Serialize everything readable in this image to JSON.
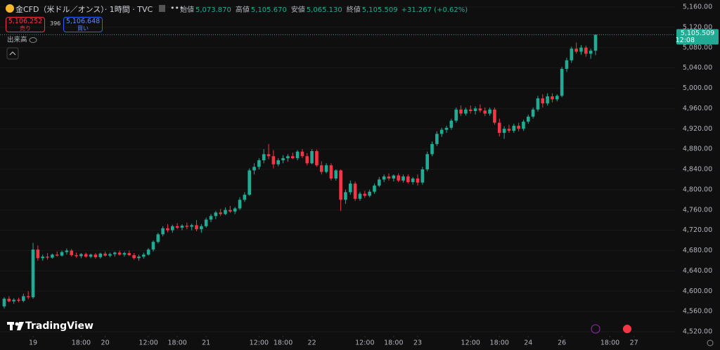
{
  "header": {
    "title": "金CFD（米ドル／オンス）· 1時間 · TVC",
    "legend": [
      {
        "label": "始値",
        "value": "5,073.870"
      },
      {
        "label": "高値",
        "value": "5,105.670"
      },
      {
        "label": "安値",
        "value": "5,065.130"
      },
      {
        "label": "終値",
        "value": "5,105.509"
      }
    ],
    "change": "+31.267 (+0.62%)",
    "sell": {
      "price": "5,106.252",
      "label": "売り"
    },
    "spread": "396",
    "buy": {
      "price": "5,106.648",
      "label": "買い"
    },
    "volume": "出来高",
    "watermark": "TradingView"
  },
  "chart_data": {
    "type": "candlestick",
    "up_color": "#22ab94",
    "down_color": "#f23645",
    "ylim": [
      4520,
      5160
    ],
    "yticks": [
      {
        "value": 5160,
        "label": "5,160.00"
      },
      {
        "value": 5120,
        "label": "5,120.00"
      },
      {
        "value": 5080,
        "label": "5,080.00"
      },
      {
        "value": 5040,
        "label": "5,040.00"
      },
      {
        "value": 5000,
        "label": "5,000.00"
      },
      {
        "value": 4960,
        "label": "4,960.00"
      },
      {
        "value": 4920,
        "label": "4,920.00"
      },
      {
        "value": 4880,
        "label": "4,880.00"
      },
      {
        "value": 4840,
        "label": "4,840.00"
      },
      {
        "value": 4800,
        "label": "4,800.00"
      },
      {
        "value": 4760,
        "label": "4,760.00"
      },
      {
        "value": 4720,
        "label": "4,720.00"
      },
      {
        "value": 4680,
        "label": "4,680.00"
      },
      {
        "value": 4640,
        "label": "4,640.00"
      },
      {
        "value": 4600,
        "label": "4,600.00"
      },
      {
        "value": 4560,
        "label": "4,560.00"
      },
      {
        "value": 4520,
        "label": "4,520.00"
      }
    ],
    "last_price": {
      "value": 5105.509,
      "label": "5,105.509"
    },
    "countdown": "12:08",
    "categories": [
      null,
      null,
      null,
      null,
      null,
      null,
      "19",
      null,
      null,
      null,
      null,
      null,
      null,
      null,
      null,
      null,
      "18:00",
      null,
      null,
      null,
      null,
      "20",
      null,
      null,
      null,
      null,
      null,
      null,
      null,
      null,
      "12:00",
      null,
      null,
      null,
      null,
      null,
      "18:00",
      null,
      null,
      null,
      null,
      null,
      "21",
      null,
      null,
      null,
      null,
      null,
      null,
      null,
      null,
      null,
      null,
      "12:00",
      null,
      null,
      null,
      null,
      "18:00",
      null,
      null,
      null,
      null,
      null,
      "22",
      null,
      null,
      null,
      null,
      null,
      null,
      null,
      null,
      null,
      null,
      "12:00",
      null,
      null,
      null,
      null,
      null,
      "18:00",
      null,
      null,
      null,
      null,
      "23",
      null,
      null,
      null,
      null,
      null,
      null,
      null,
      null,
      null,
      null,
      "12:00",
      null,
      null,
      null,
      null,
      null,
      "18:00",
      null,
      null,
      null,
      null,
      null,
      "24",
      null,
      null,
      null,
      null,
      null,
      null,
      "26",
      null,
      null,
      null,
      null,
      null,
      null,
      null,
      null,
      null,
      "18:00",
      null,
      null,
      null,
      null,
      "27"
    ],
    "ohlc": [
      [
        4570,
        4588,
        4566,
        4585
      ],
      [
        4585,
        4590,
        4578,
        4580
      ],
      [
        4580,
        4586,
        4575,
        4583
      ],
      [
        4583,
        4587,
        4578,
        4581
      ],
      [
        4581,
        4595,
        4578,
        4590
      ],
      [
        4590,
        4600,
        4584,
        4588
      ],
      [
        4588,
        4695,
        4585,
        4682
      ],
      [
        4682,
        4690,
        4660,
        4665
      ],
      [
        4665,
        4672,
        4660,
        4668
      ],
      [
        4668,
        4675,
        4662,
        4666
      ],
      [
        4666,
        4674,
        4664,
        4672
      ],
      [
        4672,
        4678,
        4668,
        4670
      ],
      [
        4670,
        4680,
        4668,
        4677
      ],
      [
        4677,
        4684,
        4672,
        4680
      ],
      [
        4680,
        4683,
        4668,
        4671
      ],
      [
        4671,
        4676,
        4666,
        4669
      ],
      [
        4669,
        4675,
        4665,
        4673
      ],
      [
        4673,
        4676,
        4666,
        4668
      ],
      [
        4668,
        4674,
        4665,
        4672
      ],
      [
        4672,
        4675,
        4664,
        4667
      ],
      [
        4667,
        4676,
        4664,
        4674
      ],
      [
        4674,
        4678,
        4668,
        4670
      ],
      [
        4670,
        4676,
        4667,
        4673
      ],
      [
        4673,
        4678,
        4668,
        4676
      ],
      [
        4676,
        4680,
        4670,
        4672
      ],
      [
        4672,
        4678,
        4668,
        4675
      ],
      [
        4675,
        4680,
        4669,
        4671
      ],
      [
        4671,
        4675,
        4662,
        4665
      ],
      [
        4665,
        4672,
        4660,
        4668
      ],
      [
        4668,
        4676,
        4664,
        4672
      ],
      [
        4672,
        4685,
        4670,
        4682
      ],
      [
        4682,
        4700,
        4678,
        4697
      ],
      [
        4697,
        4715,
        4694,
        4712
      ],
      [
        4712,
        4728,
        4708,
        4724
      ],
      [
        4724,
        4732,
        4716,
        4720
      ],
      [
        4720,
        4731,
        4715,
        4728
      ],
      [
        4728,
        4734,
        4722,
        4725
      ],
      [
        4725,
        4732,
        4720,
        4729
      ],
      [
        4729,
        4735,
        4722,
        4727
      ],
      [
        4727,
        4733,
        4720,
        4730
      ],
      [
        4730,
        4740,
        4718,
        4722
      ],
      [
        4722,
        4732,
        4715,
        4728
      ],
      [
        4728,
        4745,
        4725,
        4741
      ],
      [
        4741,
        4752,
        4736,
        4748
      ],
      [
        4748,
        4758,
        4742,
        4755
      ],
      [
        4755,
        4762,
        4748,
        4752
      ],
      [
        4752,
        4765,
        4750,
        4760
      ],
      [
        4760,
        4768,
        4754,
        4757
      ],
      [
        4757,
        4766,
        4752,
        4763
      ],
      [
        4763,
        4785,
        4760,
        4780
      ],
      [
        4780,
        4795,
        4776,
        4790
      ],
      [
        4790,
        4842,
        4788,
        4838
      ],
      [
        4838,
        4852,
        4830,
        4845
      ],
      [
        4845,
        4862,
        4840,
        4858
      ],
      [
        4858,
        4880,
        4852,
        4870
      ],
      [
        4870,
        4890,
        4860,
        4866
      ],
      [
        4866,
        4878,
        4842,
        4850
      ],
      [
        4850,
        4862,
        4846,
        4858
      ],
      [
        4858,
        4868,
        4852,
        4862
      ],
      [
        4862,
        4870,
        4855,
        4866
      ],
      [
        4866,
        4873,
        4860,
        4862
      ],
      [
        4862,
        4878,
        4858,
        4875
      ],
      [
        4875,
        4880,
        4862,
        4866
      ],
      [
        4866,
        4872,
        4848,
        4852
      ],
      [
        4852,
        4880,
        4850,
        4876
      ],
      [
        4876,
        4879,
        4845,
        4848
      ],
      [
        4848,
        4856,
        4830,
        4835
      ],
      [
        4835,
        4852,
        4832,
        4848
      ],
      [
        4848,
        4852,
        4818,
        4822
      ],
      [
        4822,
        4840,
        4818,
        4838
      ],
      [
        4838,
        4840,
        4758,
        4780
      ],
      [
        4780,
        4800,
        4772,
        4795
      ],
      [
        4795,
        4818,
        4790,
        4812
      ],
      [
        4812,
        4816,
        4778,
        4782
      ],
      [
        4782,
        4796,
        4778,
        4792
      ],
      [
        4792,
        4798,
        4784,
        4788
      ],
      [
        4788,
        4800,
        4785,
        4796
      ],
      [
        4796,
        4812,
        4792,
        4808
      ],
      [
        4808,
        4825,
        4805,
        4820
      ],
      [
        4820,
        4830,
        4815,
        4826
      ],
      [
        4826,
        4832,
        4818,
        4822
      ],
      [
        4822,
        4830,
        4816,
        4828
      ],
      [
        4828,
        4832,
        4815,
        4818
      ],
      [
        4818,
        4830,
        4814,
        4826
      ],
      [
        4826,
        4830,
        4812,
        4815
      ],
      [
        4815,
        4825,
        4810,
        4822
      ],
      [
        4822,
        4830,
        4808,
        4814
      ],
      [
        4814,
        4845,
        4810,
        4840
      ],
      [
        4840,
        4875,
        4836,
        4870
      ],
      [
        4870,
        4895,
        4866,
        4890
      ],
      [
        4890,
        4915,
        4886,
        4910
      ],
      [
        4910,
        4922,
        4904,
        4918
      ],
      [
        4918,
        4926,
        4912,
        4922
      ],
      [
        4922,
        4940,
        4918,
        4936
      ],
      [
        4936,
        4962,
        4932,
        4958
      ],
      [
        4958,
        4966,
        4945,
        4950
      ],
      [
        4950,
        4962,
        4946,
        4958
      ],
      [
        4958,
        4966,
        4950,
        4955
      ],
      [
        4955,
        4964,
        4948,
        4960
      ],
      [
        4960,
        4968,
        4952,
        4956
      ],
      [
        4956,
        4962,
        4945,
        4950
      ],
      [
        4950,
        4962,
        4946,
        4958
      ],
      [
        4958,
        4962,
        4928,
        4932
      ],
      [
        4932,
        4940,
        4905,
        4912
      ],
      [
        4912,
        4925,
        4900,
        4920
      ],
      [
        4920,
        4928,
        4912,
        4916
      ],
      [
        4916,
        4930,
        4912,
        4926
      ],
      [
        4926,
        4932,
        4915,
        4920
      ],
      [
        4920,
        4938,
        4916,
        4934
      ],
      [
        4934,
        4948,
        4930,
        4944
      ],
      [
        4944,
        4962,
        4940,
        4958
      ],
      [
        4958,
        4985,
        4954,
        4980
      ],
      [
        4980,
        4988,
        4962,
        4970
      ],
      [
        4970,
        4990,
        4966,
        4984
      ],
      [
        4984,
        4990,
        4972,
        4978
      ],
      [
        4978,
        4988,
        4974,
        4985
      ],
      [
        4985,
        5042,
        4982,
        5038
      ],
      [
        5038,
        5060,
        5032,
        5055
      ],
      [
        5055,
        5082,
        5050,
        5078
      ],
      [
        5078,
        5090,
        5068,
        5072
      ],
      [
        5072,
        5085,
        5066,
        5080
      ],
      [
        5080,
        5084,
        5062,
        5068
      ],
      [
        5068,
        5078,
        5058,
        5074
      ],
      [
        5073.87,
        5105.67,
        5065.13,
        5105.509
      ],
      null,
      null,
      null,
      null,
      null,
      null,
      null,
      null
    ]
  }
}
